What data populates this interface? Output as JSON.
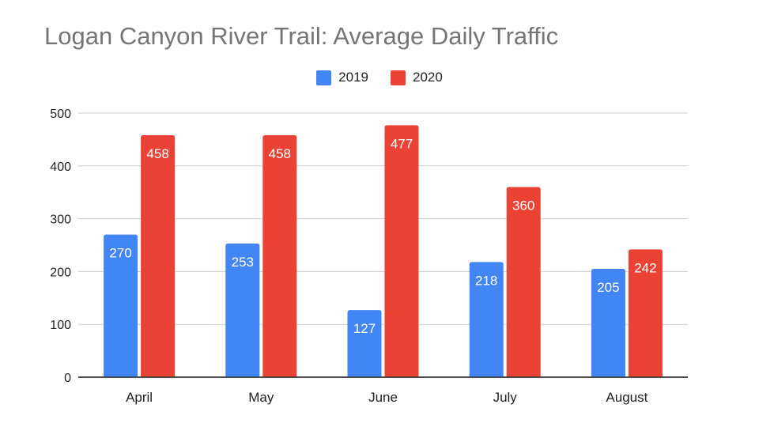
{
  "chart_data": {
    "type": "bar",
    "title": "Logan Canyon River Trail: Average Daily Traffic",
    "categories": [
      "April",
      "May",
      "June",
      "July",
      "August"
    ],
    "series": [
      {
        "name": "2019",
        "color": "#4285f4",
        "values": [
          270,
          253,
          127,
          218,
          205
        ]
      },
      {
        "name": "2020",
        "color": "#ea4335",
        "values": [
          458,
          458,
          477,
          360,
          242
        ]
      }
    ],
    "ylim": [
      0,
      500
    ],
    "yticks": [
      0,
      100,
      200,
      300,
      400,
      500
    ],
    "grid": true,
    "legend_position": "top"
  }
}
